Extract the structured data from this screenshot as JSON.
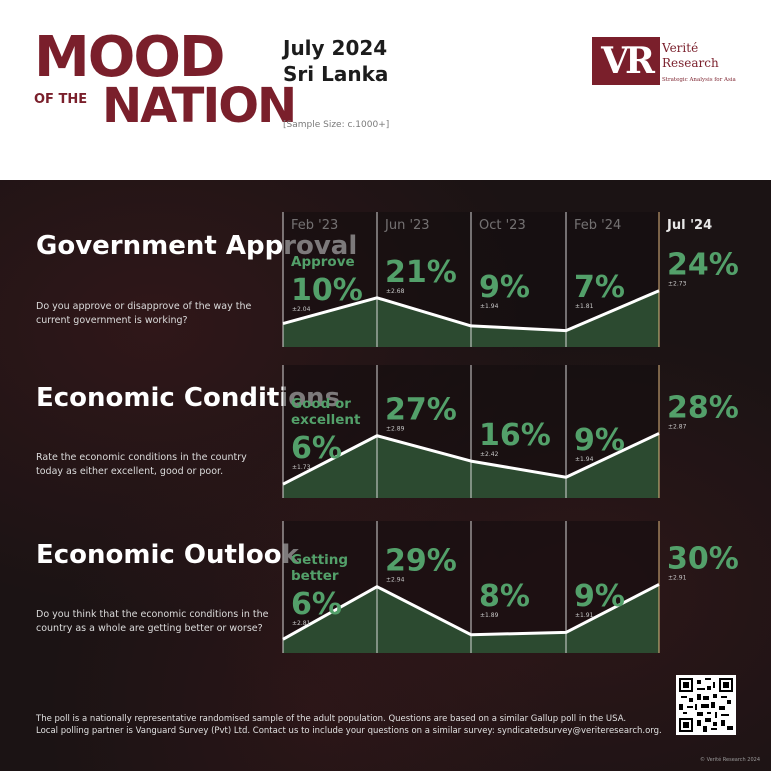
{
  "header": {
    "logo_mood": "MOOD",
    "logo_of_the": "OF THE",
    "logo_nation": "NATION",
    "date": "July 2024",
    "country": "Sri Lanka",
    "sample_size": "[Sample Size: c.1000+]",
    "brand_mark": "VR",
    "brand_name_line1": "Verité",
    "brand_name_line2": "Research",
    "brand_tagline": "Strategic Analysis for Asia"
  },
  "colors": {
    "brand": "#7a1f2b",
    "positive_green": "#53a06a",
    "highlight": "#f2c98b",
    "area_fill": "#2c4a30",
    "background_dark": "#1b1314"
  },
  "chart_data": [
    {
      "type": "area",
      "title": "Government Approval",
      "question": "Do you approve or disapprove of the way the current government is working?",
      "series_label": "Approve",
      "categories": [
        "Feb '23",
        "Jun '23",
        "Oct '23",
        "Feb '24",
        "Jul '24"
      ],
      "values": [
        10,
        21,
        9,
        7,
        24
      ],
      "value_labels": [
        "10%",
        "21%",
        "9%",
        "7%",
        "24%"
      ],
      "margins": [
        "±2.04",
        "±2.68",
        "±1.94",
        "±1.81",
        "±2.73"
      ]
    },
    {
      "type": "area",
      "title": "Economic Conditions",
      "question": "Rate the economic conditions in the country today as either excellent, good or poor.",
      "series_label": "Good or excellent",
      "categories": [
        "Feb '23",
        "Jun '23",
        "Oct '23",
        "Feb '24",
        "Jul '24"
      ],
      "values": [
        6,
        27,
        16,
        9,
        28
      ],
      "value_labels": [
        "6%",
        "27%",
        "16%",
        "9%",
        "28%"
      ],
      "margins": [
        "±1.73",
        "±2.89",
        "±2.42",
        "±1.94",
        "±2.87"
      ]
    },
    {
      "type": "area",
      "title": "Economic Outlook",
      "question": "Do you think that the economic conditions in the country as a whole are getting better or worse?",
      "series_label": "Getting better",
      "categories": [
        "Feb '23",
        "Jun '23",
        "Oct '23",
        "Feb '24",
        "Jul '24"
      ],
      "values": [
        6,
        29,
        8,
        9,
        30
      ],
      "value_labels": [
        "6%",
        "29%",
        "8%",
        "9%",
        "30%"
      ],
      "margins": [
        "±2.81",
        "±2.94",
        "±1.89",
        "±1.91",
        "±2.91"
      ]
    }
  ],
  "footer": {
    "line1": "The poll is a nationally representative randomised sample of the adult population. Questions are based on a similar Gallup poll in the USA.",
    "line2": "Local polling partner is Vanguard Survey (Pvt) Ltd. Contact us to include your questions on a similar survey: syndicatedsurvey@veriteresearch.org.",
    "copyright": "© Verité Research 2024"
  }
}
